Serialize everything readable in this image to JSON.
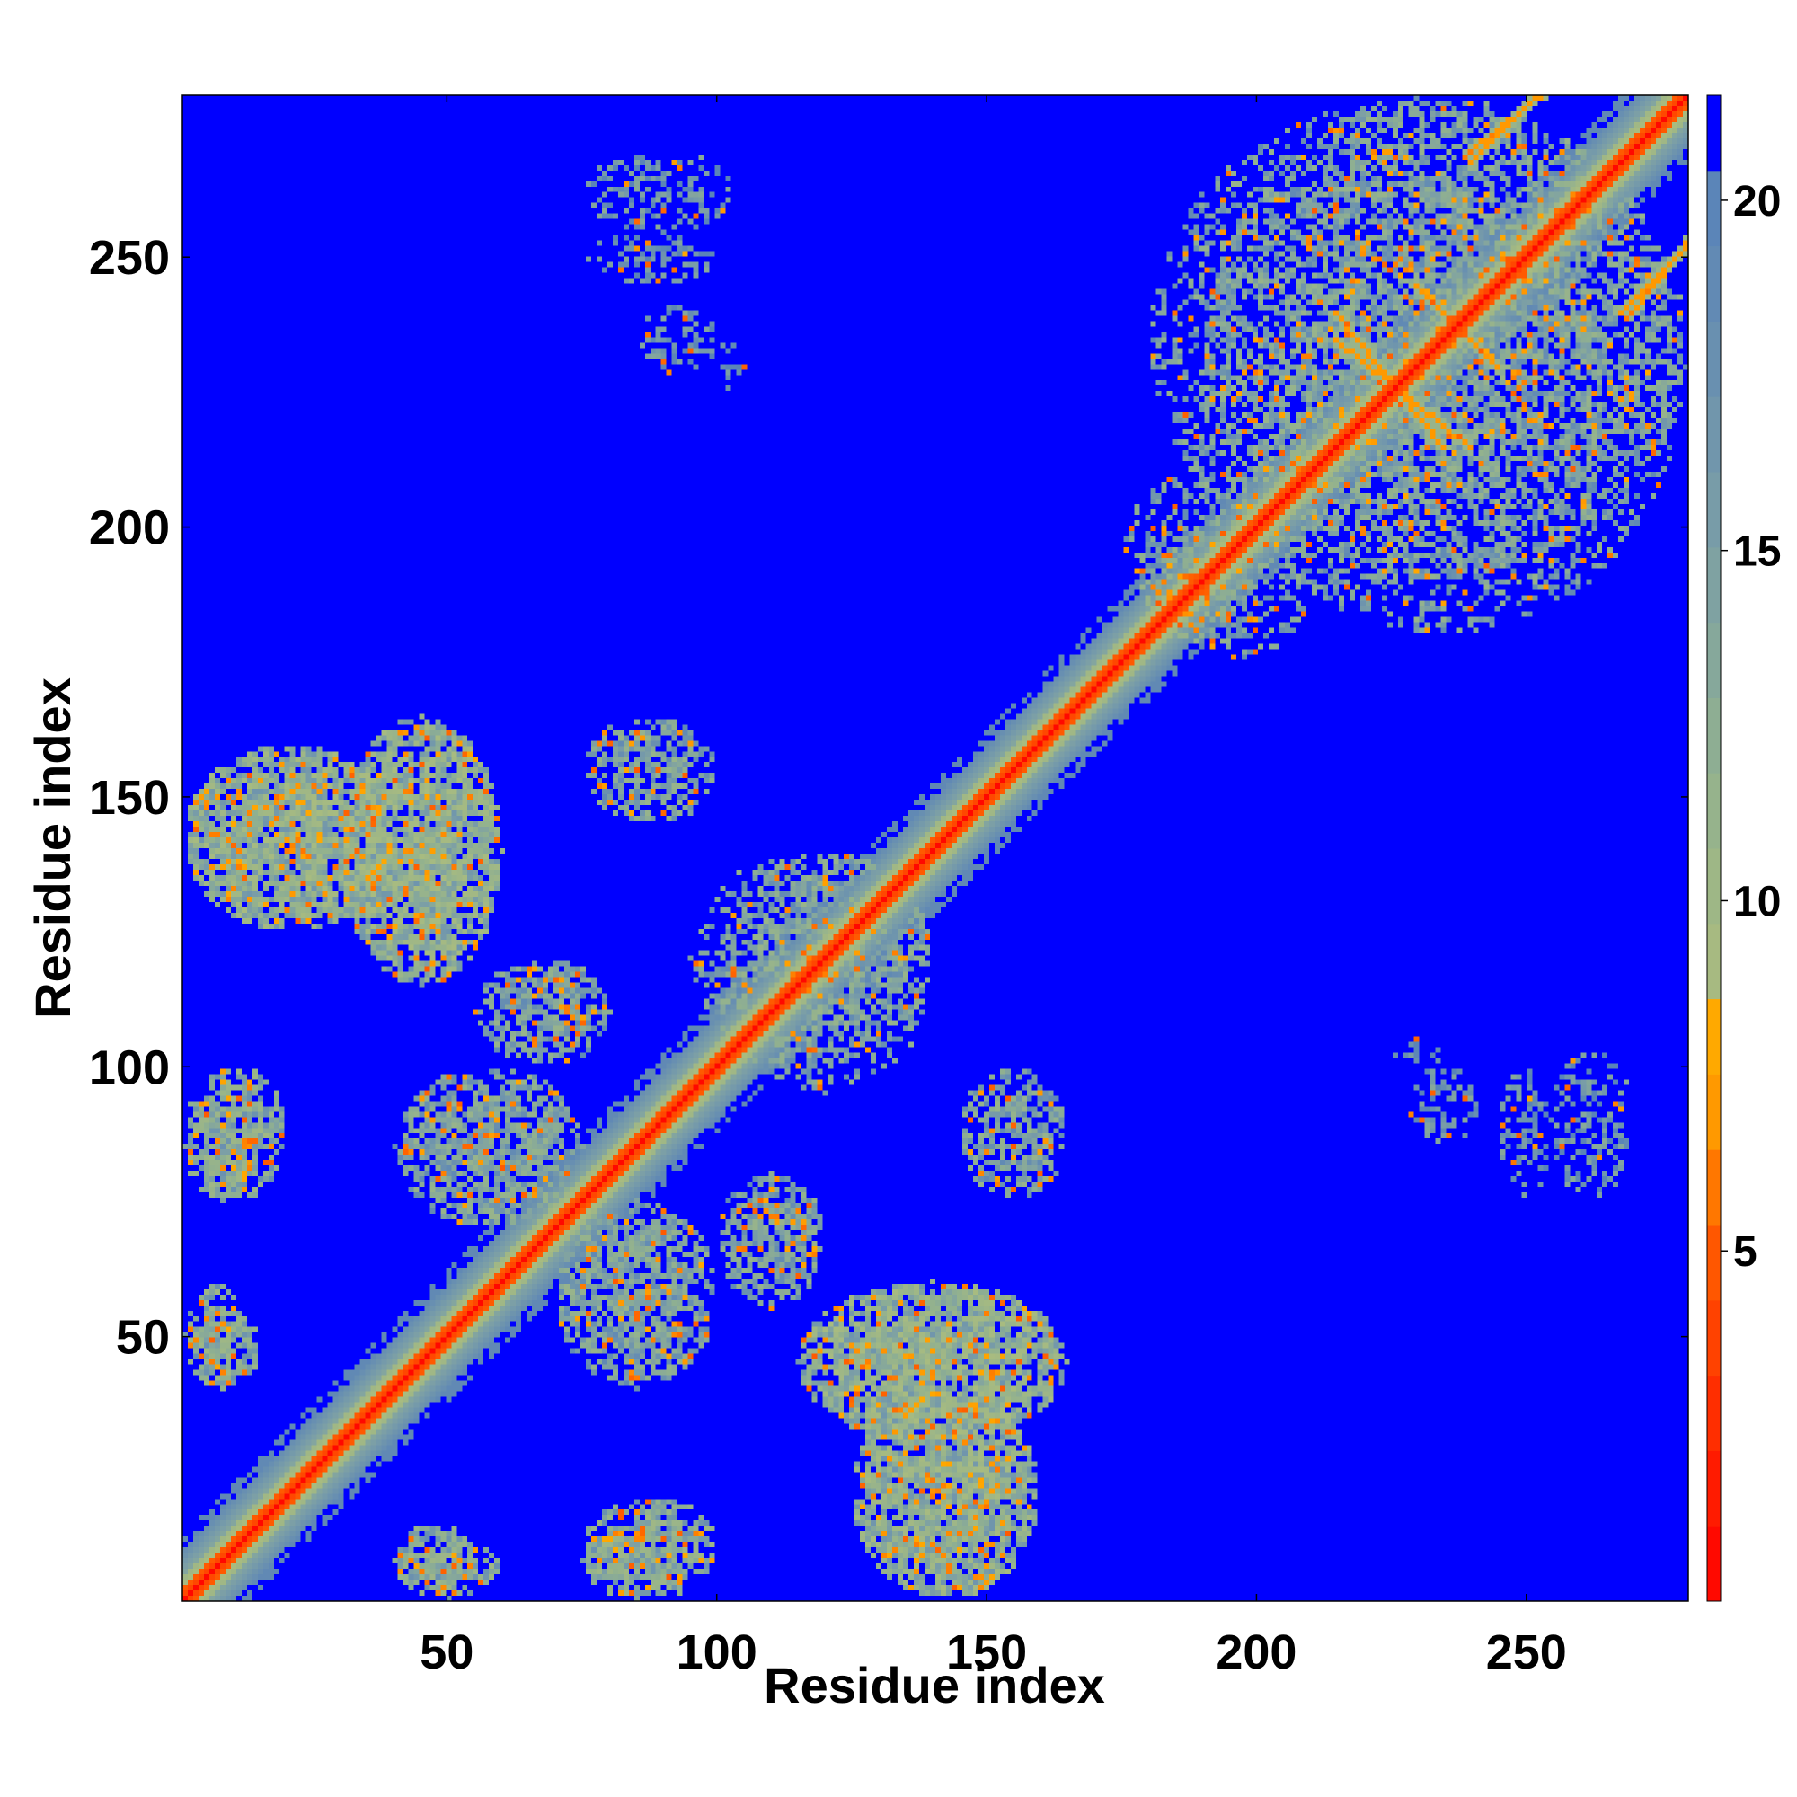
{
  "chart_data": {
    "type": "heatmap",
    "title": "",
    "xlabel": "Residue index",
    "ylabel": "Residue index",
    "xlim": [
      1,
      280
    ],
    "ylim": [
      1,
      280
    ],
    "x_ticks": [
      50,
      100,
      150,
      200,
      250
    ],
    "y_ticks": [
      50,
      100,
      150,
      200,
      250
    ],
    "colorbar": {
      "range": [
        0,
        21.5
      ],
      "ticks": [
        5,
        10,
        15,
        20
      ],
      "stops": [
        {
          "value": 0,
          "color": "#ff0000"
        },
        {
          "value": 2.5,
          "color": "#ff2a00"
        },
        {
          "value": 5,
          "color": "#ff5a00"
        },
        {
          "value": 7,
          "color": "#ff9900"
        },
        {
          "value": 8.5,
          "color": "#ffb000"
        },
        {
          "value": 9,
          "color": "#a8bb80"
        },
        {
          "value": 12,
          "color": "#90b090"
        },
        {
          "value": 15,
          "color": "#7c9fa6"
        },
        {
          "value": 20,
          "color": "#5a84b8"
        },
        {
          "value": 21,
          "color": "#0000ff"
        }
      ]
    },
    "diagonal": {
      "from": 1,
      "to": 280
    },
    "contact_regions": [
      {
        "x": [
          1,
          40
        ],
        "y": [
          125,
          160
        ],
        "level": 13,
        "density": 0.7
      },
      {
        "x": [
          30,
          60
        ],
        "y": [
          115,
          165
        ],
        "level": 13,
        "density": 0.7
      },
      {
        "x": [
          125,
          160
        ],
        "y": [
          1,
          40
        ],
        "level": 13,
        "density": 0.7
      },
      {
        "x": [
          115,
          165
        ],
        "y": [
          30,
          60
        ],
        "level": 13,
        "density": 0.7
      },
      {
        "x": [
          1,
          20
        ],
        "y": [
          75,
          100
        ],
        "level": 14,
        "density": 0.55
      },
      {
        "x": [
          75,
          100
        ],
        "y": [
          1,
          20
        ],
        "level": 14,
        "density": 0.55
      },
      {
        "x": [
          1,
          15
        ],
        "y": [
          40,
          55
        ],
        "level": 14,
        "density": 0.55
      },
      {
        "x": [
          40,
          55
        ],
        "y": [
          1,
          15
        ],
        "level": 14,
        "density": 0.55
      },
      {
        "x": [
          40,
          60
        ],
        "y": [
          1,
          12
        ],
        "level": 14,
        "density": 0.55
      },
      {
        "x": [
          75,
          95
        ],
        "y": [
          1,
          15
        ],
        "level": 14,
        "density": 0.55
      },
      {
        "x": [
          40,
          75
        ],
        "y": [
          70,
          100
        ],
        "level": 15,
        "density": 0.5
      },
      {
        "x": [
          70,
          100
        ],
        "y": [
          40,
          75
        ],
        "level": 15,
        "density": 0.5
      },
      {
        "x": [
          55,
          80
        ],
        "y": [
          100,
          120
        ],
        "level": 15,
        "density": 0.5
      },
      {
        "x": [
          100,
          120
        ],
        "y": [
          55,
          80
        ],
        "level": 15,
        "density": 0.5
      },
      {
        "x": [
          95,
          140
        ],
        "y": [
          100,
          140
        ],
        "level": 15,
        "density": 0.45
      },
      {
        "x": [
          75,
          100
        ],
        "y": [
          145,
          165
        ],
        "level": 15,
        "density": 0.45
      },
      {
        "x": [
          145,
          165
        ],
        "y": [
          75,
          100
        ],
        "level": 15,
        "density": 0.45
      },
      {
        "x": [
          175,
          200
        ],
        "y": [
          180,
          210
        ],
        "level": 15,
        "density": 0.5
      },
      {
        "x": [
          190,
          280
        ],
        "y": [
          180,
          280
        ],
        "level": 15,
        "density": 0.45
      },
      {
        "x": [
          75,
          105
        ],
        "y": [
          255,
          270
        ],
        "level": 17,
        "density": 0.35
      },
      {
        "x": [
          100,
          105
        ],
        "y": [
          225,
          235
        ],
        "level": 17,
        "density": 0.35
      },
      {
        "x": 5,
        "y": 0,
        "level": 0,
        "density": 0
      },
      {
        "x": [
          228,
          242
        ],
        "y": [
          85,
          100
        ],
        "level": 17,
        "density": 0.35
      },
      {
        "x": [
          245,
          255
        ],
        "y": [
          75,
          100
        ],
        "level": 17,
        "density": 0.35
      }
    ],
    "cross_lines": [
      {
        "from": [
          215,
          240
        ],
        "to": [
          235,
          215
        ],
        "level": 7
      },
      {
        "from": [
          230,
          245
        ],
        "to": [
          245,
          230
        ],
        "level": 7
      },
      {
        "from": [
          240,
          270
        ],
        "to": [
          255,
          282
        ],
        "level": 7
      },
      {
        "from": [
          268,
          240
        ],
        "to": [
          280,
          252
        ],
        "level": 7
      }
    ]
  }
}
